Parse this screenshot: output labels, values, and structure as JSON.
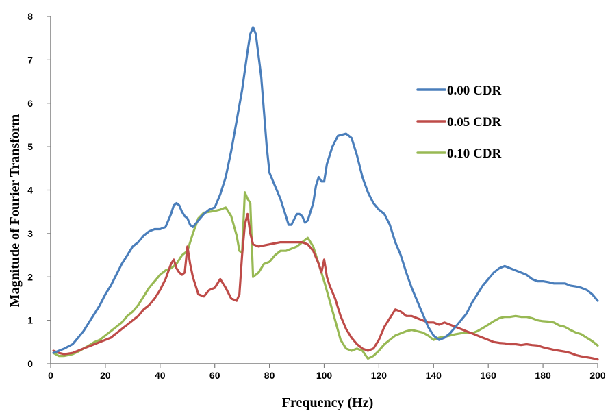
{
  "chart_data": {
    "type": "line",
    "xlabel": "Frequency (Hz)",
    "ylabel": "Magnitude of Fourier Transform",
    "xlim": [
      0,
      200
    ],
    "ylim": [
      0,
      8
    ],
    "x_ticks": [
      0,
      20,
      40,
      60,
      80,
      100,
      120,
      140,
      160,
      180,
      200
    ],
    "y_ticks": [
      0,
      1,
      2,
      3,
      4,
      5,
      6,
      7,
      8
    ],
    "grid": false,
    "legend_position": "top-right",
    "series": [
      {
        "name": "0.00 CDR",
        "color": "#4a7ebb",
        "points": [
          [
            1,
            0.25
          ],
          [
            3,
            0.3
          ],
          [
            5,
            0.35
          ],
          [
            8,
            0.45
          ],
          [
            10,
            0.6
          ],
          [
            12,
            0.75
          ],
          [
            14,
            0.95
          ],
          [
            16,
            1.15
          ],
          [
            18,
            1.35
          ],
          [
            20,
            1.6
          ],
          [
            22,
            1.8
          ],
          [
            24,
            2.05
          ],
          [
            26,
            2.3
          ],
          [
            28,
            2.5
          ],
          [
            30,
            2.7
          ],
          [
            32,
            2.8
          ],
          [
            34,
            2.95
          ],
          [
            36,
            3.05
          ],
          [
            38,
            3.1
          ],
          [
            40,
            3.1
          ],
          [
            42,
            3.15
          ],
          [
            44,
            3.45
          ],
          [
            45,
            3.65
          ],
          [
            46,
            3.7
          ],
          [
            47,
            3.65
          ],
          [
            48,
            3.5
          ],
          [
            49,
            3.4
          ],
          [
            50,
            3.35
          ],
          [
            51,
            3.2
          ],
          [
            52,
            3.15
          ],
          [
            54,
            3.3
          ],
          [
            56,
            3.45
          ],
          [
            58,
            3.55
          ],
          [
            60,
            3.6
          ],
          [
            62,
            3.9
          ],
          [
            64,
            4.3
          ],
          [
            66,
            4.9
          ],
          [
            68,
            5.6
          ],
          [
            70,
            6.3
          ],
          [
            72,
            7.2
          ],
          [
            73,
            7.6
          ],
          [
            74,
            7.75
          ],
          [
            75,
            7.6
          ],
          [
            76,
            7.1
          ],
          [
            77,
            6.6
          ],
          [
            78,
            5.8
          ],
          [
            79,
            5.0
          ],
          [
            80,
            4.4
          ],
          [
            82,
            4.1
          ],
          [
            84,
            3.8
          ],
          [
            86,
            3.4
          ],
          [
            87,
            3.2
          ],
          [
            88,
            3.2
          ],
          [
            90,
            3.45
          ],
          [
            91,
            3.45
          ],
          [
            92,
            3.4
          ],
          [
            93,
            3.25
          ],
          [
            94,
            3.3
          ],
          [
            96,
            3.7
          ],
          [
            97,
            4.1
          ],
          [
            98,
            4.3
          ],
          [
            99,
            4.2
          ],
          [
            100,
            4.2
          ],
          [
            101,
            4.6
          ],
          [
            103,
            5.0
          ],
          [
            105,
            5.25
          ],
          [
            108,
            5.3
          ],
          [
            110,
            5.2
          ],
          [
            112,
            4.8
          ],
          [
            114,
            4.3
          ],
          [
            116,
            3.95
          ],
          [
            118,
            3.7
          ],
          [
            120,
            3.55
          ],
          [
            122,
            3.45
          ],
          [
            124,
            3.2
          ],
          [
            126,
            2.8
          ],
          [
            128,
            2.5
          ],
          [
            130,
            2.1
          ],
          [
            132,
            1.75
          ],
          [
            134,
            1.45
          ],
          [
            136,
            1.15
          ],
          [
            138,
            0.85
          ],
          [
            140,
            0.65
          ],
          [
            142,
            0.55
          ],
          [
            144,
            0.6
          ],
          [
            146,
            0.7
          ],
          [
            148,
            0.85
          ],
          [
            150,
            1.0
          ],
          [
            152,
            1.15
          ],
          [
            154,
            1.4
          ],
          [
            156,
            1.6
          ],
          [
            158,
            1.8
          ],
          [
            160,
            1.95
          ],
          [
            162,
            2.1
          ],
          [
            164,
            2.2
          ],
          [
            166,
            2.25
          ],
          [
            168,
            2.2
          ],
          [
            170,
            2.15
          ],
          [
            172,
            2.1
          ],
          [
            174,
            2.05
          ],
          [
            176,
            1.95
          ],
          [
            178,
            1.9
          ],
          [
            180,
            1.9
          ],
          [
            182,
            1.88
          ],
          [
            184,
            1.85
          ],
          [
            186,
            1.85
          ],
          [
            188,
            1.85
          ],
          [
            190,
            1.8
          ],
          [
            192,
            1.78
          ],
          [
            194,
            1.75
          ],
          [
            196,
            1.7
          ],
          [
            198,
            1.6
          ],
          [
            200,
            1.45
          ]
        ]
      },
      {
        "name": "0.05 CDR",
        "color": "#be4b48",
        "points": [
          [
            1,
            0.3
          ],
          [
            3,
            0.25
          ],
          [
            5,
            0.22
          ],
          [
            8,
            0.25
          ],
          [
            10,
            0.3
          ],
          [
            12,
            0.35
          ],
          [
            14,
            0.4
          ],
          [
            16,
            0.45
          ],
          [
            18,
            0.5
          ],
          [
            20,
            0.55
          ],
          [
            22,
            0.6
          ],
          [
            24,
            0.7
          ],
          [
            26,
            0.8
          ],
          [
            28,
            0.9
          ],
          [
            30,
            1.0
          ],
          [
            32,
            1.1
          ],
          [
            34,
            1.25
          ],
          [
            36,
            1.35
          ],
          [
            38,
            1.5
          ],
          [
            40,
            1.7
          ],
          [
            42,
            1.95
          ],
          [
            44,
            2.3
          ],
          [
            45,
            2.4
          ],
          [
            46,
            2.2
          ],
          [
            47,
            2.1
          ],
          [
            48,
            2.05
          ],
          [
            49,
            2.1
          ],
          [
            50,
            2.7
          ],
          [
            51,
            2.3
          ],
          [
            52,
            2.0
          ],
          [
            54,
            1.6
          ],
          [
            56,
            1.55
          ],
          [
            58,
            1.7
          ],
          [
            60,
            1.75
          ],
          [
            62,
            1.95
          ],
          [
            64,
            1.75
          ],
          [
            66,
            1.5
          ],
          [
            68,
            1.45
          ],
          [
            69,
            1.6
          ],
          [
            70,
            2.5
          ],
          [
            71,
            3.2
          ],
          [
            72,
            3.45
          ],
          [
            73,
            3.0
          ],
          [
            74,
            2.75
          ],
          [
            76,
            2.7
          ],
          [
            80,
            2.75
          ],
          [
            84,
            2.8
          ],
          [
            88,
            2.8
          ],
          [
            92,
            2.8
          ],
          [
            94,
            2.75
          ],
          [
            96,
            2.6
          ],
          [
            98,
            2.3
          ],
          [
            99,
            2.1
          ],
          [
            100,
            2.4
          ],
          [
            101,
            2.0
          ],
          [
            102,
            1.8
          ],
          [
            104,
            1.5
          ],
          [
            106,
            1.1
          ],
          [
            108,
            0.8
          ],
          [
            110,
            0.6
          ],
          [
            112,
            0.45
          ],
          [
            114,
            0.35
          ],
          [
            116,
            0.3
          ],
          [
            118,
            0.35
          ],
          [
            120,
            0.55
          ],
          [
            122,
            0.85
          ],
          [
            124,
            1.05
          ],
          [
            126,
            1.25
          ],
          [
            128,
            1.2
          ],
          [
            130,
            1.1
          ],
          [
            132,
            1.1
          ],
          [
            134,
            1.05
          ],
          [
            136,
            1.0
          ],
          [
            138,
            0.95
          ],
          [
            140,
            0.95
          ],
          [
            142,
            0.9
          ],
          [
            144,
            0.95
          ],
          [
            146,
            0.9
          ],
          [
            148,
            0.85
          ],
          [
            150,
            0.8
          ],
          [
            152,
            0.75
          ],
          [
            154,
            0.7
          ],
          [
            156,
            0.65
          ],
          [
            158,
            0.6
          ],
          [
            160,
            0.55
          ],
          [
            162,
            0.5
          ],
          [
            164,
            0.48
          ],
          [
            166,
            0.47
          ],
          [
            168,
            0.45
          ],
          [
            170,
            0.45
          ],
          [
            172,
            0.43
          ],
          [
            174,
            0.45
          ],
          [
            176,
            0.43
          ],
          [
            178,
            0.42
          ],
          [
            180,
            0.38
          ],
          [
            182,
            0.35
          ],
          [
            184,
            0.32
          ],
          [
            186,
            0.3
          ],
          [
            188,
            0.28
          ],
          [
            190,
            0.25
          ],
          [
            192,
            0.2
          ],
          [
            194,
            0.17
          ],
          [
            196,
            0.15
          ],
          [
            198,
            0.13
          ],
          [
            200,
            0.1
          ]
        ]
      },
      {
        "name": "0.10 CDR",
        "color": "#98b954",
        "points": [
          [
            1,
            0.25
          ],
          [
            3,
            0.18
          ],
          [
            5,
            0.18
          ],
          [
            8,
            0.22
          ],
          [
            10,
            0.28
          ],
          [
            12,
            0.35
          ],
          [
            14,
            0.42
          ],
          [
            16,
            0.5
          ],
          [
            18,
            0.55
          ],
          [
            20,
            0.65
          ],
          [
            22,
            0.75
          ],
          [
            24,
            0.85
          ],
          [
            26,
            0.95
          ],
          [
            28,
            1.1
          ],
          [
            30,
            1.2
          ],
          [
            32,
            1.35
          ],
          [
            34,
            1.55
          ],
          [
            36,
            1.75
          ],
          [
            38,
            1.9
          ],
          [
            40,
            2.05
          ],
          [
            42,
            2.15
          ],
          [
            44,
            2.2
          ],
          [
            46,
            2.3
          ],
          [
            48,
            2.5
          ],
          [
            50,
            2.6
          ],
          [
            52,
            3.0
          ],
          [
            54,
            3.35
          ],
          [
            56,
            3.48
          ],
          [
            58,
            3.5
          ],
          [
            60,
            3.52
          ],
          [
            62,
            3.55
          ],
          [
            64,
            3.6
          ],
          [
            66,
            3.4
          ],
          [
            68,
            2.95
          ],
          [
            69,
            2.6
          ],
          [
            70,
            2.55
          ],
          [
            71,
            3.95
          ],
          [
            72,
            3.8
          ],
          [
            73,
            3.7
          ],
          [
            74,
            2.0
          ],
          [
            76,
            2.1
          ],
          [
            78,
            2.3
          ],
          [
            80,
            2.35
          ],
          [
            82,
            2.5
          ],
          [
            84,
            2.6
          ],
          [
            86,
            2.6
          ],
          [
            88,
            2.65
          ],
          [
            90,
            2.7
          ],
          [
            92,
            2.8
          ],
          [
            94,
            2.9
          ],
          [
            96,
            2.7
          ],
          [
            98,
            2.3
          ],
          [
            100,
            1.9
          ],
          [
            102,
            1.45
          ],
          [
            104,
            1.0
          ],
          [
            106,
            0.55
          ],
          [
            108,
            0.35
          ],
          [
            110,
            0.3
          ],
          [
            112,
            0.35
          ],
          [
            114,
            0.3
          ],
          [
            116,
            0.12
          ],
          [
            118,
            0.18
          ],
          [
            120,
            0.3
          ],
          [
            122,
            0.45
          ],
          [
            124,
            0.55
          ],
          [
            126,
            0.65
          ],
          [
            128,
            0.7
          ],
          [
            130,
            0.75
          ],
          [
            132,
            0.78
          ],
          [
            134,
            0.75
          ],
          [
            136,
            0.72
          ],
          [
            138,
            0.65
          ],
          [
            140,
            0.55
          ],
          [
            142,
            0.6
          ],
          [
            144,
            0.62
          ],
          [
            146,
            0.65
          ],
          [
            148,
            0.68
          ],
          [
            150,
            0.7
          ],
          [
            152,
            0.72
          ],
          [
            154,
            0.7
          ],
          [
            156,
            0.75
          ],
          [
            158,
            0.82
          ],
          [
            160,
            0.9
          ],
          [
            162,
            0.98
          ],
          [
            164,
            1.05
          ],
          [
            166,
            1.08
          ],
          [
            168,
            1.08
          ],
          [
            170,
            1.1
          ],
          [
            172,
            1.08
          ],
          [
            174,
            1.08
          ],
          [
            176,
            1.05
          ],
          [
            178,
            1.0
          ],
          [
            180,
            0.98
          ],
          [
            182,
            0.97
          ],
          [
            184,
            0.95
          ],
          [
            186,
            0.88
          ],
          [
            188,
            0.85
          ],
          [
            190,
            0.78
          ],
          [
            192,
            0.72
          ],
          [
            194,
            0.68
          ],
          [
            196,
            0.6
          ],
          [
            198,
            0.52
          ],
          [
            200,
            0.42
          ]
        ]
      }
    ]
  }
}
